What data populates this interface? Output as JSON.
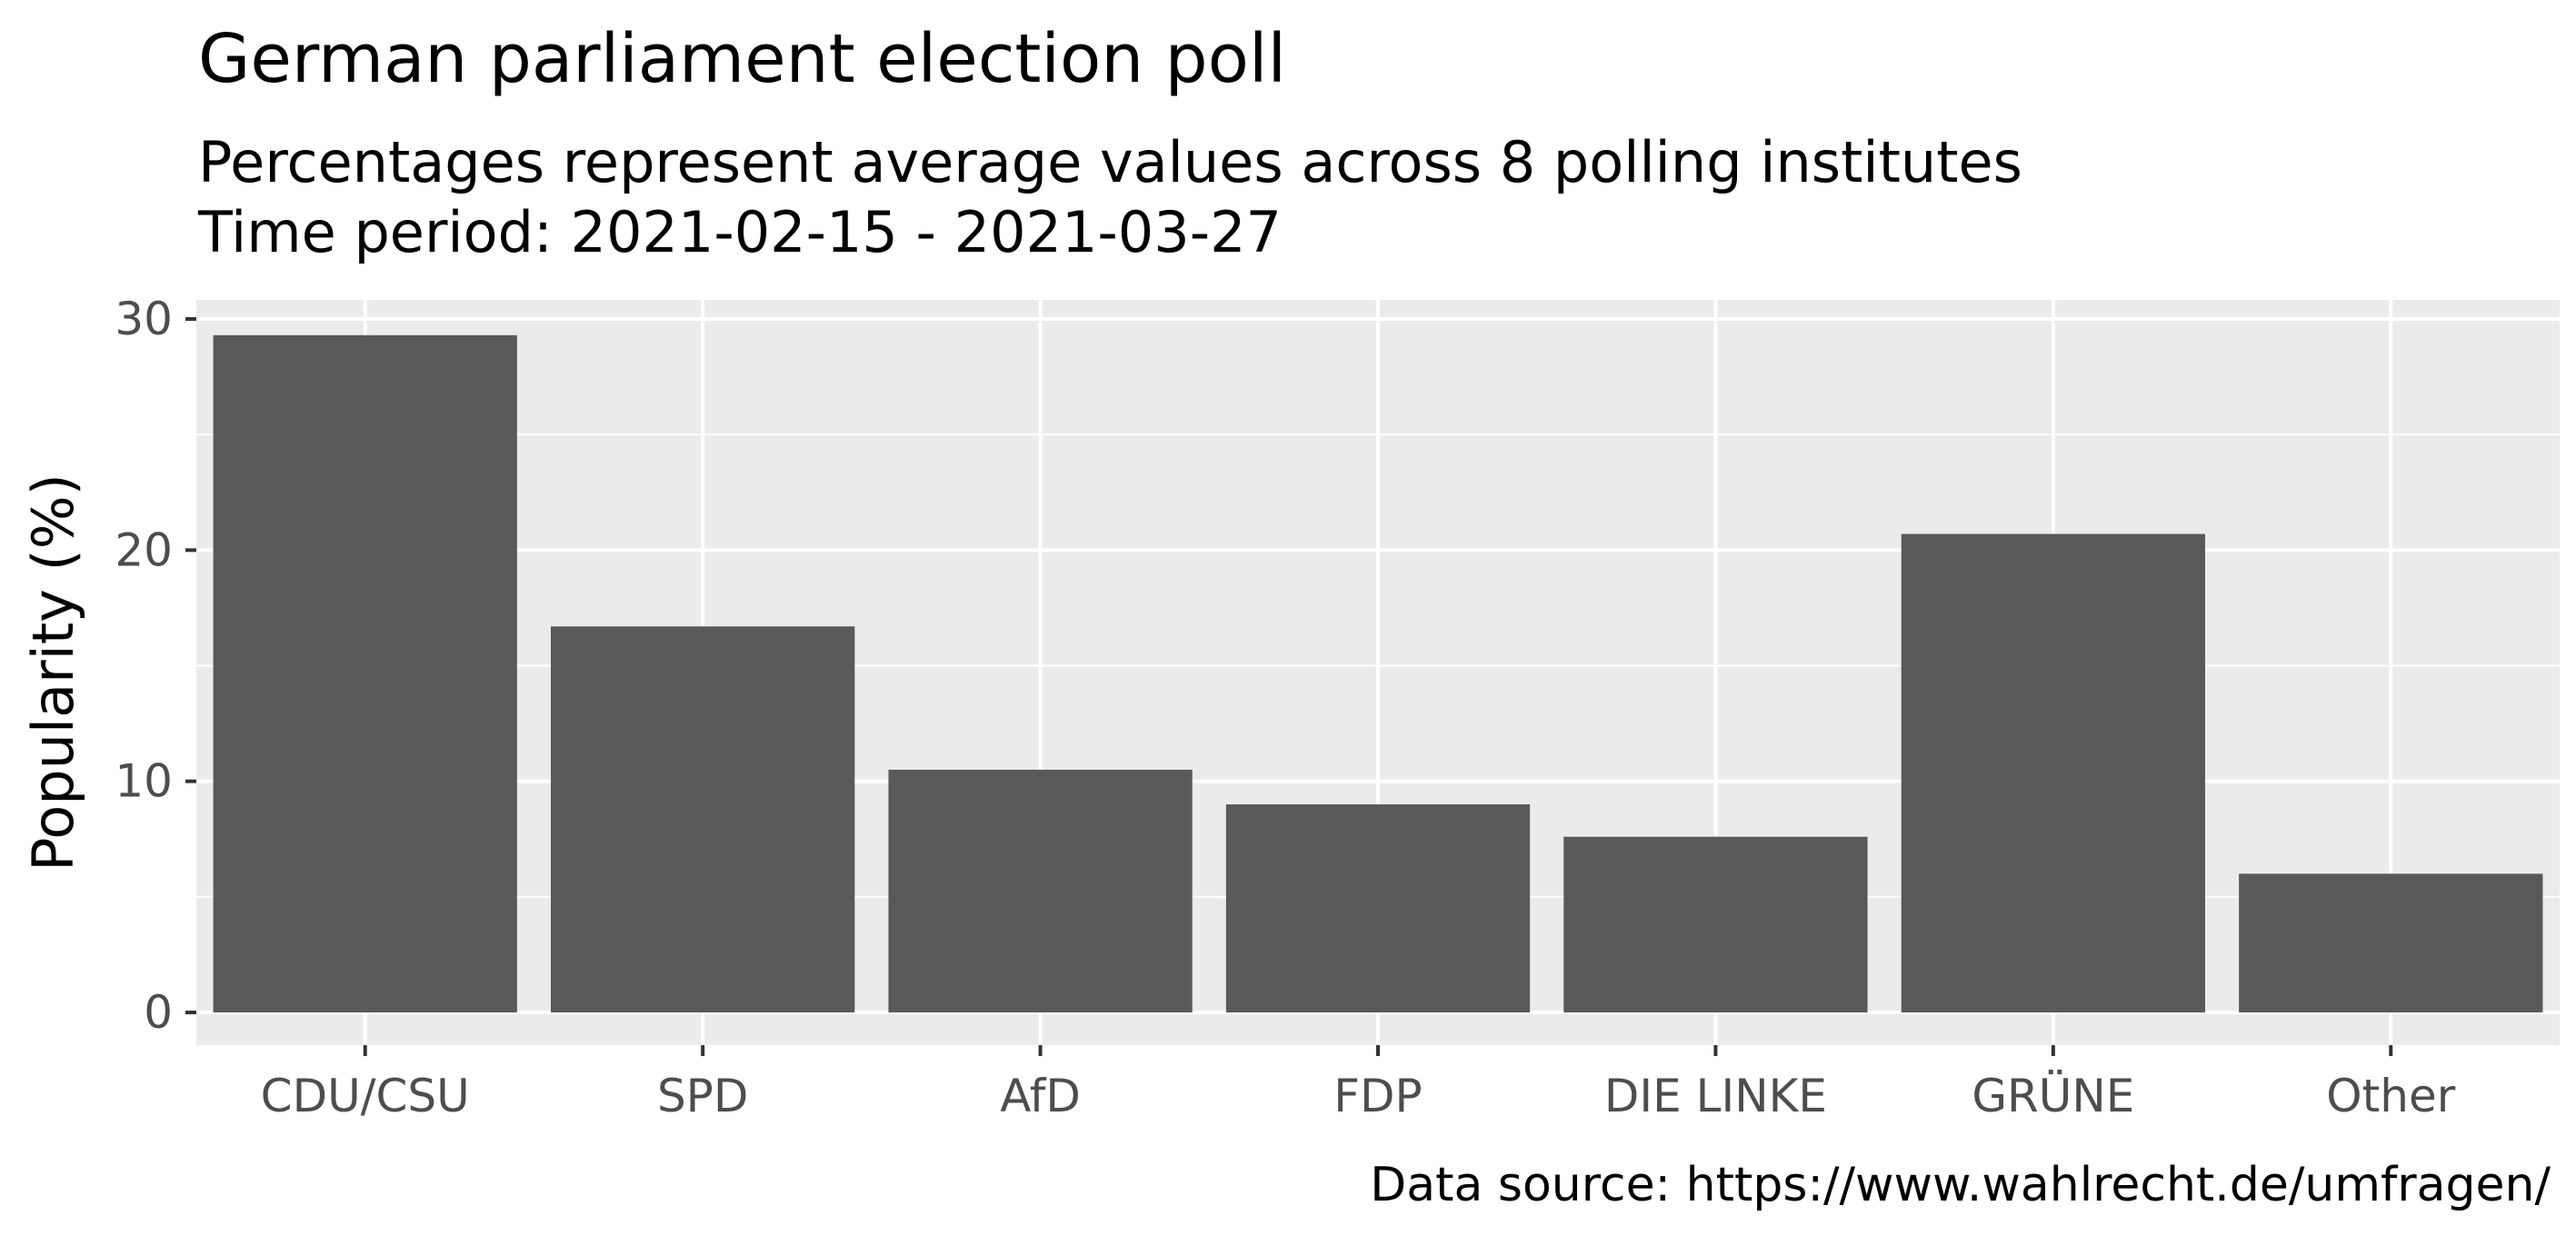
{
  "chart_data": {
    "type": "bar",
    "title": "German parliament election poll",
    "subtitle_lines": [
      "Percentages represent average values across 8 polling institutes",
      "Time period: 2021-02-15 - 2021-03-27"
    ],
    "xlabel": "",
    "ylabel": "Popularity (%)",
    "caption": "Data source: https://www.wahlrecht.de/umfragen/",
    "categories": [
      "CDU/CSU",
      "SPD",
      "AfD",
      "FDP",
      "DIE LINKE",
      "GRÜNE",
      "Other"
    ],
    "values": [
      29.3,
      16.7,
      10.5,
      9.0,
      7.6,
      20.7,
      6.0
    ],
    "ylim": [
      0,
      30
    ],
    "yticks": [
      0,
      10,
      20,
      30
    ],
    "ytick_labels": [
      "0",
      "10",
      "20",
      "30"
    ],
    "grid": true,
    "legend": "none",
    "colors": {
      "bar": "#595959",
      "panel_background": "#ebebeb",
      "grid": "#ffffff",
      "tick_text": "#4d4d4d",
      "tick_mark": "#333333"
    }
  }
}
